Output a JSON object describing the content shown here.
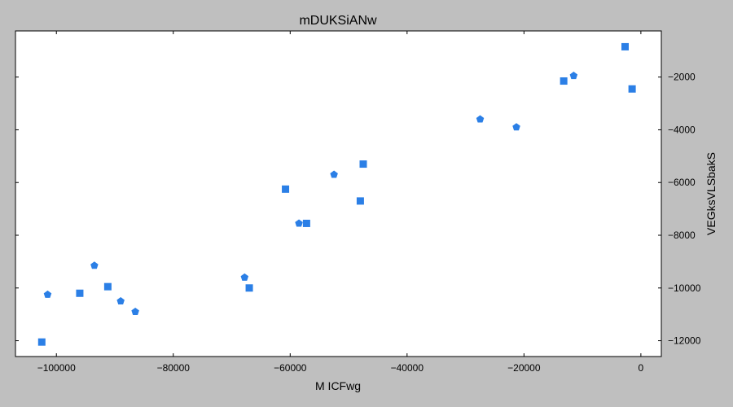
{
  "chart_data": {
    "type": "scatter",
    "title": "mDUKSiANw",
    "xlabel": "M ICFwg",
    "ylabel": "VEGksVLSbakS",
    "xlim": [
      -107000,
      3500
    ],
    "ylim": [
      -12600,
      -250
    ],
    "x_ticks": [
      -100000,
      -80000,
      -60000,
      -40000,
      -20000,
      0
    ],
    "x_tick_labels": [
      "−100000",
      "−80000",
      "−60000",
      "−40000",
      "−20000",
      "0"
    ],
    "y_ticks": [
      -12000,
      -10000,
      -8000,
      -6000,
      -4000,
      -2000
    ],
    "y_tick_labels": [
      "−12000",
      "−10000",
      "−8000",
      "−6000",
      "−4000",
      "−2000"
    ],
    "y_axis_side": "right",
    "grid": false,
    "marker_color": "#2b7fe6",
    "series": [
      {
        "marker": "square",
        "x": [
          -102500,
          -96000,
          -91200,
          -67000,
          -60800,
          -57200,
          -48000,
          -47500,
          -13200,
          -2700,
          -1500
        ],
        "y": [
          -12050,
          -10200,
          -9950,
          -10000,
          -6250,
          -7550,
          -6700,
          -5300,
          -2150,
          -850,
          -2450
        ]
      },
      {
        "marker": "pentagon",
        "x": [
          -101500,
          -93500,
          -89000,
          -86500,
          -67800,
          -58500,
          -52500,
          -27500,
          -21300,
          -11500
        ],
        "y": [
          -10250,
          -9150,
          -10500,
          -10900,
          -9600,
          -7550,
          -5700,
          -3600,
          -3900,
          -1950
        ]
      }
    ]
  }
}
